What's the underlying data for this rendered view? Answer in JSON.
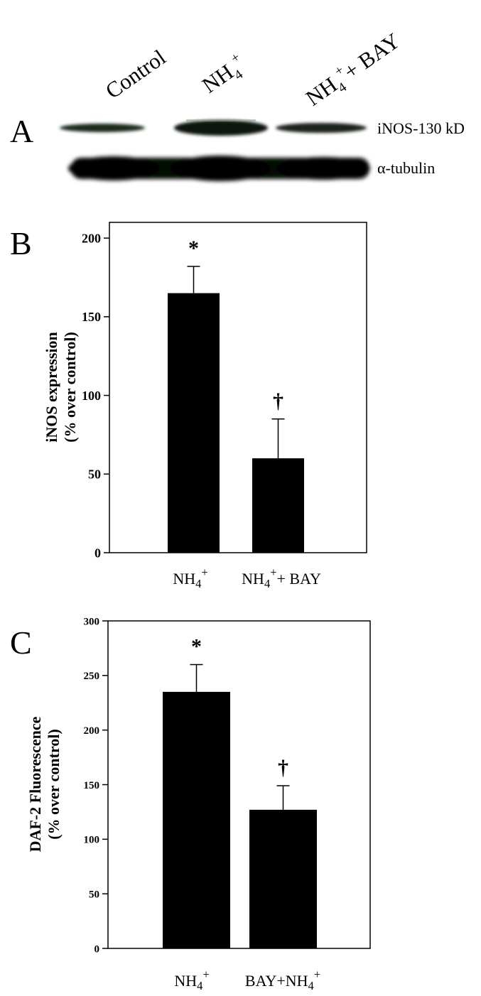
{
  "panel_a": {
    "letter": "A",
    "lane_labels": [
      {
        "base": "Control",
        "sub": "",
        "sup": "",
        "rest": ""
      },
      {
        "base": "NH",
        "sub": "4",
        "sup": "+",
        "rest": ""
      },
      {
        "base": "NH",
        "sub": "4",
        "sup": "+",
        "rest": "+ BAY"
      }
    ],
    "band_labels": {
      "inos": "iNOS-130 kD",
      "tubulin": "α-tubulin"
    }
  },
  "chart_data": [
    {
      "type": "bar",
      "panel": "B",
      "categories": [
        "NH4+",
        "NH4+ + BAY"
      ],
      "category_labels": [
        {
          "base": "NH",
          "sub": "4",
          "sup": "+",
          "rest": ""
        },
        {
          "base": "NH",
          "sub": "4",
          "sup": "+",
          "rest": "+ BAY"
        }
      ],
      "values": [
        165,
        60
      ],
      "errors": [
        17,
        25
      ],
      "markers": [
        "*",
        "†"
      ],
      "ylabel": "iNOS expression",
      "ylabel2": "(% over control)",
      "ylim": [
        0,
        210
      ],
      "yticks": [
        0,
        50,
        100,
        150,
        200
      ],
      "grid": false,
      "bar_color": "#000000"
    },
    {
      "type": "bar",
      "panel": "C",
      "categories": [
        "NH4+",
        "BAY+NH4+"
      ],
      "category_labels": [
        {
          "base": "NH",
          "sub": "4",
          "sup": "+",
          "rest": ""
        },
        {
          "base": "BAY+NH",
          "sub": "4",
          "sup": "+",
          "rest": ""
        }
      ],
      "values": [
        235,
        127
      ],
      "errors": [
        25,
        22
      ],
      "markers": [
        "*",
        "†"
      ],
      "ylabel": "DAF-2 Fluorescence",
      "ylabel2": "(% over control)",
      "ylim": [
        0,
        300
      ],
      "yticks": [
        0,
        50,
        100,
        150,
        200,
        250,
        300
      ],
      "grid": false,
      "bar_color": "#000000"
    }
  ]
}
